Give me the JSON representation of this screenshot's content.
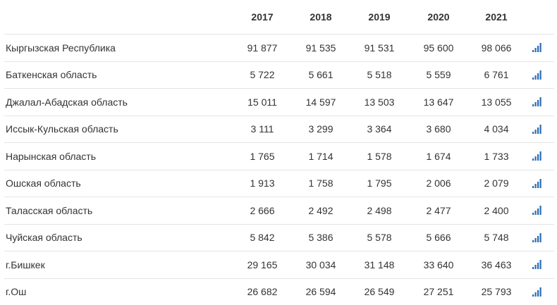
{
  "columns": [
    "2017",
    "2018",
    "2019",
    "2020",
    "2021"
  ],
  "accent_color": "#2a6db5",
  "row_icon": "bar-chart-icon",
  "rows": [
    {
      "name": "Кыргызская Республика",
      "values": [
        "91 877",
        "91 535",
        "91 531",
        "95 600",
        "98 066"
      ]
    },
    {
      "name": "Баткенская область",
      "values": [
        "5 722",
        "5 661",
        "5 518",
        "5 559",
        "6 761"
      ]
    },
    {
      "name": "Джалал-Абадская область",
      "values": [
        "15 011",
        "14 597",
        "13 503",
        "13 647",
        "13 055"
      ]
    },
    {
      "name": "Иссык-Кульская область",
      "values": [
        "3 111",
        "3 299",
        "3 364",
        "3 680",
        "4 034"
      ]
    },
    {
      "name": "Нарынская область",
      "values": [
        "1 765",
        "1 714",
        "1 578",
        "1 674",
        "1 733"
      ]
    },
    {
      "name": "Ошская область",
      "values": [
        "1 913",
        "1 758",
        "1 795",
        "2 006",
        "2 079"
      ]
    },
    {
      "name": "Таласская область",
      "values": [
        "2 666",
        "2 492",
        "2 498",
        "2 477",
        "2 400"
      ]
    },
    {
      "name": "Чуйская область",
      "values": [
        "5 842",
        "5 386",
        "5 578",
        "5 666",
        "5 748"
      ]
    },
    {
      "name": "г.Бишкек",
      "values": [
        "29 165",
        "30 034",
        "31 148",
        "33 640",
        "36 463"
      ]
    },
    {
      "name": "г.Ош",
      "values": [
        "26 682",
        "26 594",
        "26 549",
        "27 251",
        "25 793"
      ]
    }
  ]
}
